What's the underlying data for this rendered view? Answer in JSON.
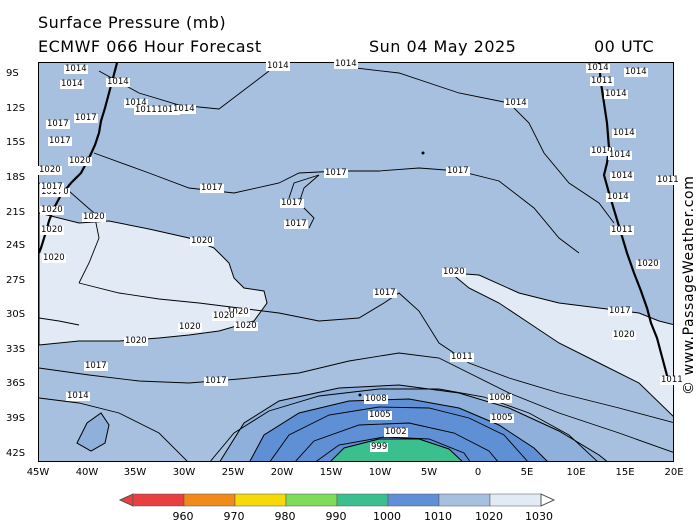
{
  "header": {
    "title": "Surface Pressure (mb)",
    "model": "ECMWF 066 Hour Forecast",
    "date": "Sun 04 May 2025",
    "time": "00 UTC"
  },
  "lat_ticks": [
    "9S",
    "12S",
    "15S",
    "18S",
    "21S",
    "24S",
    "27S",
    "30S",
    "33S",
    "36S",
    "39S",
    "42S"
  ],
  "lon_ticks": [
    "45W",
    "40W",
    "35W",
    "30W",
    "25W",
    "20W",
    "15W",
    "10W",
    "5W",
    "0",
    "5E",
    "10E",
    "15E",
    "20E"
  ],
  "colors": {
    "land": "#e1eaf5",
    "ocean_1020": "#a7c0df",
    "low_1010": "#8eb0da",
    "low_1000": "#5f8fd4",
    "low_990": "#3cbf8f",
    "coast": "#000000",
    "isobar": "#000000"
  },
  "scale": {
    "values": [
      "960",
      "970",
      "980",
      "990",
      "1000",
      "1010",
      "1020",
      "1030"
    ],
    "colors": [
      "#e84040",
      "#f08a1a",
      "#f5d90a",
      "#7ddc5a",
      "#3cbf8f",
      "#5f8fd4",
      "#a7c0df",
      "#e1eaf5"
    ]
  },
  "isobar_labels": [
    "1014",
    "1014",
    "1014",
    "1014",
    "1014",
    "1014",
    "1014",
    "1014",
    "1014",
    "1014",
    "1014",
    "1017",
    "1017",
    "1017",
    "1017",
    "1017",
    "1017",
    "1017",
    "1017",
    "1017",
    "1017",
    "1017",
    "1017",
    "1020",
    "1020",
    "1020",
    "1020",
    "1020",
    "1020",
    "1020",
    "1020",
    "1020",
    "1020",
    "1020",
    "1020",
    "1011",
    "1011",
    "1011",
    "1011",
    "1008",
    "1005",
    "1005",
    "1002",
    "999",
    "1006",
    "1010",
    "1014",
    "1014",
    "1020",
    "1020",
    "1020",
    "1020",
    "1017",
    "1017",
    "1014",
    "1014",
    "1011",
    "1014",
    "1014",
    "1011"
  ],
  "watermark": "© www.PassageWeather.com"
}
